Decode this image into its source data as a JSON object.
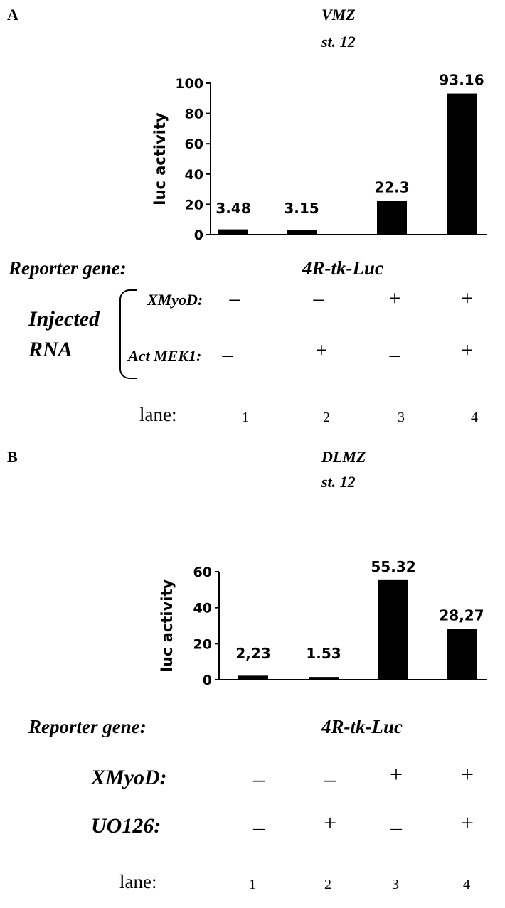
{
  "panels": [
    {
      "letter": "A",
      "title_line1": "VMZ",
      "title_line2": "st. 12",
      "reporter_label": "Reporter gene:",
      "reporter_value": "4R-tk-Luc",
      "injected_label_1": "Injected",
      "injected_label_2": "RNA",
      "rows": [
        {
          "label": "XMyoD:",
          "signs": [
            "–",
            "–",
            "+",
            "+"
          ]
        },
        {
          "label": "Act MEK1:",
          "signs": [
            "–",
            "+",
            "–",
            "+"
          ]
        }
      ],
      "lane_label": "lane:",
      "lanes": [
        "1",
        "2",
        "3",
        "4"
      ]
    },
    {
      "letter": "B",
      "title_line1": "DLMZ",
      "title_line2": "st. 12",
      "reporter_label": "Reporter gene:",
      "reporter_value": "4R-tk-Luc",
      "rows": [
        {
          "label": "XMyoD:",
          "signs": [
            "–",
            "–",
            "+",
            "+"
          ]
        },
        {
          "label": "UO126:",
          "signs": [
            "–",
            "+",
            "–",
            "+"
          ]
        }
      ],
      "lane_label": "lane:",
      "lanes": [
        "1",
        "2",
        "3",
        "4"
      ]
    }
  ],
  "chart_data": [
    {
      "type": "bar",
      "title": "",
      "xlabel": "",
      "ylabel": "luc activity",
      "categories": [
        "1",
        "2",
        "3",
        "4"
      ],
      "values": [
        3.48,
        3.15,
        22.3,
        93.16
      ],
      "data_labels": [
        "3.48",
        "3.15",
        "22.3",
        "93.16"
      ],
      "ylim": [
        0,
        100
      ],
      "yticks": [
        0,
        20,
        40,
        60,
        80,
        100
      ],
      "grid": false,
      "bar_color": "#000000"
    },
    {
      "type": "bar",
      "title": "",
      "xlabel": "",
      "ylabel": "luc activity",
      "categories": [
        "1",
        "2",
        "3",
        "4"
      ],
      "values": [
        2.23,
        1.53,
        55.32,
        28.27
      ],
      "data_labels": [
        "2,23",
        "1.53",
        "55.32",
        "28,27"
      ],
      "ylim": [
        0,
        60
      ],
      "yticks": [
        0,
        20,
        40,
        60
      ],
      "grid": false,
      "bar_color": "#000000"
    }
  ]
}
